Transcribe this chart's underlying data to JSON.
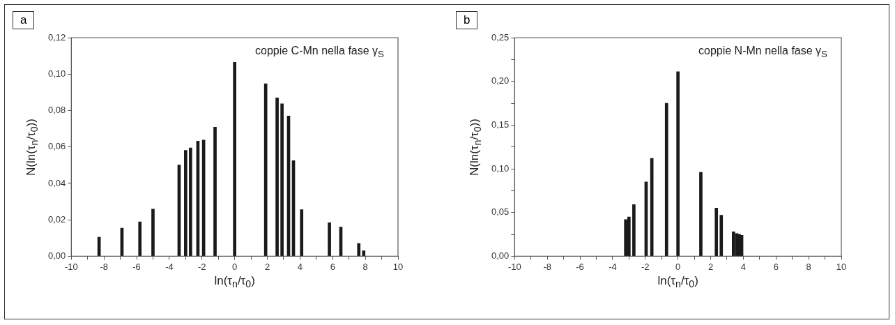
{
  "chart_data": [
    {
      "type": "bar",
      "annotations": [
        "a",
        "coppie C-Mn nella fase γ$_{S}$"
      ],
      "xlabel": "ln(τ$_{n}$/τ$_{0}$)",
      "ylabel": "N(ln(τ$_{n}$/τ$_{0}$))",
      "color": "#1a1a1a",
      "x": [
        -8.3,
        -6.9,
        -5.8,
        -5.0,
        -3.4,
        -3.0,
        -2.7,
        -2.25,
        -1.9,
        -1.2,
        0,
        1.9,
        2.6,
        2.9,
        3.3,
        3.6,
        4.1,
        5.8,
        6.5,
        7.6,
        7.9
      ],
      "values": [
        0.0105,
        0.0154,
        0.0189,
        0.0259,
        0.0501,
        0.0581,
        0.0595,
        0.0632,
        0.0638,
        0.0709,
        0.1065,
        0.0947,
        0.0869,
        0.0837,
        0.077,
        0.0525,
        0.0256,
        0.0184,
        0.016,
        0.007,
        0.003
      ],
      "xlim": [
        -10,
        10
      ],
      "xticks": [
        -10,
        {
          "value": -9,
          "label": null
        },
        -8,
        {
          "value": -7,
          "label": null
        },
        -6,
        {
          "value": -5,
          "label": null
        },
        -4,
        {
          "value": -3,
          "label": null
        },
        -2,
        {
          "value": -1,
          "label": null
        },
        0,
        {
          "value": 1,
          "label": null
        },
        2,
        {
          "value": 3,
          "label": null
        },
        4,
        {
          "value": 5,
          "label": null
        },
        6,
        {
          "value": 7,
          "label": null
        },
        8,
        {
          "value": 9,
          "label": null
        },
        10
      ],
      "ylim": [
        0,
        0.12
      ],
      "yticks": [
        {
          "value": 0,
          "label": "0,00"
        },
        {
          "value": 0.02,
          "label": "0,02"
        },
        {
          "value": 0.04,
          "label": "0,04"
        },
        {
          "value": 0.06,
          "label": "0,06"
        },
        {
          "value": 0.08,
          "label": "0,08"
        },
        {
          "value": 0.1,
          "label": "0,10"
        },
        {
          "value": 0.12,
          "label": "0,12"
        }
      ]
    },
    {
      "type": "bar",
      "annotations": [
        "b",
        "coppie N-Mn nella fase γ$_{S}$"
      ],
      "xlabel": "ln(τ$_{n}$/τ$_{0}$)",
      "ylabel": "N(ln(τ$_{n}$/τ$_{0}$))",
      "color": "#1a1a1a",
      "x": [
        -3.2,
        -3.0,
        -2.7,
        -1.95,
        -1.6,
        -0.7,
        0,
        1.4,
        2.35,
        2.65,
        3.4,
        3.6,
        3.75,
        3.9
      ],
      "values": [
        0.042,
        0.045,
        0.059,
        0.085,
        0.112,
        0.175,
        0.211,
        0.096,
        0.055,
        0.047,
        0.028,
        0.026,
        0.025,
        0.024
      ],
      "xlim": [
        -10,
        10
      ],
      "xticks": [
        -10,
        {
          "value": -9,
          "label": null
        },
        -8,
        {
          "value": -7,
          "label": null
        },
        -6,
        {
          "value": -5,
          "label": null
        },
        -4,
        {
          "value": -3,
          "label": null
        },
        -2,
        {
          "value": -1,
          "label": null
        },
        0,
        {
          "value": 1,
          "label": null
        },
        2,
        {
          "value": 3,
          "label": null
        },
        4,
        {
          "value": 5,
          "label": null
        },
        6,
        {
          "value": 7,
          "label": null
        },
        8,
        {
          "value": 9,
          "label": null
        },
        10
      ],
      "ylim": [
        0,
        0.25
      ],
      "yticks": [
        {
          "value": 0,
          "label": "0,00"
        },
        {
          "value": 0.025,
          "label": null
        },
        {
          "value": 0.05,
          "label": "0,05"
        },
        {
          "value": 0.075,
          "label": null
        },
        {
          "value": 0.1,
          "label": "0,10"
        },
        {
          "value": 0.125,
          "label": null
        },
        {
          "value": 0.15,
          "label": "0,15"
        },
        {
          "value": 0.175,
          "label": null
        },
        {
          "value": 0.2,
          "label": "0,20"
        },
        {
          "value": 0.225,
          "label": null
        },
        {
          "value": 0.25,
          "label": "0,25"
        }
      ]
    }
  ]
}
